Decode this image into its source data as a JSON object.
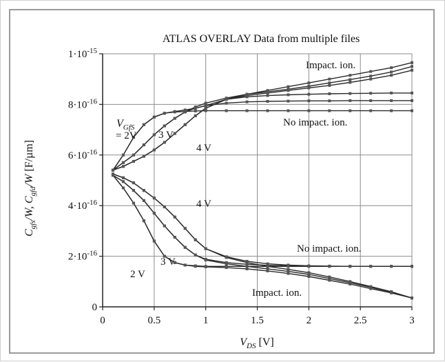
{
  "chart_data": {
    "type": "line",
    "title": "ATLAS OVERLAY Data from multiple files",
    "ylabel": "C_gfs/W, C_gfd/W  [F/µm]",
    "xlabel": "V_DS [V]",
    "xlim": [
      0,
      3
    ],
    "ylim": [
      0,
      1e-15
    ],
    "grid": true,
    "x_ticks": [
      0,
      0.5,
      1,
      1.5,
      2,
      2.5,
      3
    ],
    "x_tick_labels": [
      "0",
      "0.5",
      "1",
      "1.5",
      "2",
      "2.5",
      "3"
    ],
    "y_ticks": [
      0,
      2e-16,
      4e-16,
      6e-16,
      8e-16,
      1e-15
    ],
    "y_tick_labels": [
      {
        "mant": "0",
        "exp": ""
      },
      {
        "mant": "2·10",
        "exp": "-16"
      },
      {
        "mant": "4·10",
        "exp": "-16"
      },
      {
        "mant": "6·10",
        "exp": "-16"
      },
      {
        "mant": "8·10",
        "exp": "-16"
      },
      {
        "mant": "1·10",
        "exp": "-15"
      }
    ],
    "x": [
      0.1,
      0.2,
      0.3,
      0.4,
      0.5,
      0.6,
      0.7,
      0.8,
      0.9,
      1.0,
      1.2,
      1.4,
      1.6,
      1.8,
      2.0,
      2.2,
      2.4,
      2.6,
      2.8,
      3.0
    ],
    "series": [
      {
        "group": "Cgfs, impact ionization",
        "vgfs": "2V",
        "values": [
          5.4e-16,
          6e-16,
          6.7e-16,
          7.2e-16,
          7.5e-16,
          7.65e-16,
          7.72e-16,
          7.78e-16,
          7.85e-16,
          7.95e-16,
          8.2e-16,
          8.4e-16,
          8.55e-16,
          8.7e-16,
          8.85e-16,
          9e-16,
          9.15e-16,
          9.3e-16,
          9.45e-16,
          9.65e-16
        ]
      },
      {
        "group": "Cgfs, impact ionization",
        "vgfs": "3V",
        "values": [
          5.4e-16,
          5.7e-16,
          6e-16,
          6.4e-16,
          6.8e-16,
          7.15e-16,
          7.45e-16,
          7.7e-16,
          7.9e-16,
          8.05e-16,
          8.25e-16,
          8.4e-16,
          8.5e-16,
          8.6e-16,
          8.72e-16,
          8.85e-16,
          8.98e-16,
          9.12e-16,
          9.28e-16,
          9.5e-16
        ]
      },
      {
        "group": "Cgfs, impact ionization",
        "vgfs": "4V",
        "values": [
          5.4e-16,
          5.55e-16,
          5.75e-16,
          5.95e-16,
          6.2e-16,
          6.5e-16,
          6.85e-16,
          7.2e-16,
          7.55e-16,
          7.85e-16,
          8.2e-16,
          8.35e-16,
          8.45e-16,
          8.55e-16,
          8.65e-16,
          8.75e-16,
          8.87e-16,
          9e-16,
          9.15e-16,
          9.35e-16
        ]
      },
      {
        "group": "Cgfs, no impact ionization",
        "vgfs": "2V",
        "values": [
          5.4e-16,
          6e-16,
          6.7e-16,
          7.2e-16,
          7.5e-16,
          7.65e-16,
          7.7e-16,
          7.72e-16,
          7.74e-16,
          7.75e-16,
          7.75e-16,
          7.75e-16,
          7.75e-16,
          7.75e-16,
          7.75e-16,
          7.75e-16,
          7.75e-16,
          7.75e-16,
          7.75e-16,
          7.75e-16
        ]
      },
      {
        "group": "Cgfs, no impact ionization",
        "vgfs": "3V",
        "values": [
          5.4e-16,
          5.7e-16,
          6e-16,
          6.4e-16,
          6.8e-16,
          7.15e-16,
          7.45e-16,
          7.7e-16,
          7.85e-16,
          7.95e-16,
          8.05e-16,
          8.1e-16,
          8.12e-16,
          8.13e-16,
          8.14e-16,
          8.14e-16,
          8.15e-16,
          8.15e-16,
          8.15e-16,
          8.15e-16
        ]
      },
      {
        "group": "Cgfs, no impact ionization",
        "vgfs": "4V",
        "values": [
          5.4e-16,
          5.55e-16,
          5.75e-16,
          5.95e-16,
          6.2e-16,
          6.5e-16,
          6.85e-16,
          7.2e-16,
          7.55e-16,
          7.85e-16,
          8.2e-16,
          8.3e-16,
          8.35e-16,
          8.38e-16,
          8.4e-16,
          8.42e-16,
          8.43e-16,
          8.44e-16,
          8.45e-16,
          8.45e-16
        ]
      },
      {
        "group": "Cgfd, impact ionization",
        "vgfs": "2V",
        "values": [
          5.2e-16,
          4.7e-16,
          4.1e-16,
          3.4e-16,
          2.6e-16,
          2e-16,
          1.75e-16,
          1.65e-16,
          1.6e-16,
          1.58e-16,
          1.55e-16,
          1.5e-16,
          1.42e-16,
          1.32e-16,
          1.2e-16,
          1.05e-16,
          9e-17,
          7.2e-17,
          5.5e-17,
          3.5e-17
        ]
      },
      {
        "group": "Cgfd, impact ionization",
        "vgfs": "3V",
        "values": [
          5.2e-16,
          4.95e-16,
          4.6e-16,
          4.2e-16,
          3.7e-16,
          3.2e-16,
          2.75e-16,
          2.35e-16,
          2.05e-16,
          1.85e-16,
          1.7e-16,
          1.6e-16,
          1.5e-16,
          1.4e-16,
          1.28e-16,
          1.12e-16,
          9.5e-17,
          7.7e-17,
          5.8e-17,
          3.5e-17
        ]
      },
      {
        "group": "Cgfd, impact ionization",
        "vgfs": "4V",
        "values": [
          5.25e-16,
          5.1e-16,
          4.9e-16,
          4.6e-16,
          4.3e-16,
          3.95e-16,
          3.55e-16,
          3.1e-16,
          2.65e-16,
          2.3e-16,
          1.95e-16,
          1.75e-16,
          1.6e-16,
          1.48e-16,
          1.35e-16,
          1.18e-16,
          1e-16,
          8e-17,
          6e-17,
          3.5e-17
        ]
      },
      {
        "group": "Cgfd, no impact ionization",
        "vgfs": "2V",
        "values": [
          5.2e-16,
          4.7e-16,
          4.1e-16,
          3.4e-16,
          2.6e-16,
          2e-16,
          1.75e-16,
          1.65e-16,
          1.62e-16,
          1.6e-16,
          1.6e-16,
          1.6e-16,
          1.6e-16,
          1.6e-16,
          1.6e-16,
          1.6e-16,
          1.6e-16,
          1.6e-16,
          1.6e-16,
          1.6e-16
        ]
      },
      {
        "group": "Cgfd, no impact ionization",
        "vgfs": "3V",
        "values": [
          5.2e-16,
          4.95e-16,
          4.6e-16,
          4.2e-16,
          3.7e-16,
          3.2e-16,
          2.75e-16,
          2.35e-16,
          2.05e-16,
          1.88e-16,
          1.75e-16,
          1.68e-16,
          1.64e-16,
          1.62e-16,
          1.61e-16,
          1.6e-16,
          1.6e-16,
          1.6e-16,
          1.6e-16,
          1.6e-16
        ]
      },
      {
        "group": "Cgfd, no impact ionization",
        "vgfs": "4V",
        "values": [
          5.25e-16,
          5.1e-16,
          4.9e-16,
          4.6e-16,
          4.3e-16,
          3.95e-16,
          3.55e-16,
          3.1e-16,
          2.65e-16,
          2.3e-16,
          1.98e-16,
          1.8e-16,
          1.7e-16,
          1.65e-16,
          1.62e-16,
          1.61e-16,
          1.6e-16,
          1.6e-16,
          1.6e-16,
          1.6e-16
        ]
      }
    ],
    "annotations": {
      "vgfs_symbol": "V",
      "vgfs_sub": "GfS",
      "upper_2v": "= 2V",
      "upper_3v": "3 V",
      "upper_4v": "4 V",
      "lower_2v": "2 V",
      "lower_3v": "3 V",
      "lower_4v": "4 V",
      "impact_upper": "Impact. ion.",
      "no_impact_upper": "No impact. ion.",
      "no_impact_lower": "No impact. ion.",
      "impact_lower": "Impact. ion."
    },
    "colors": {
      "curve": "#2a2a2a",
      "marker": "#555555",
      "grid": "#8c8c8c",
      "axis": "#222222",
      "frame": "#9a9a9a"
    }
  }
}
